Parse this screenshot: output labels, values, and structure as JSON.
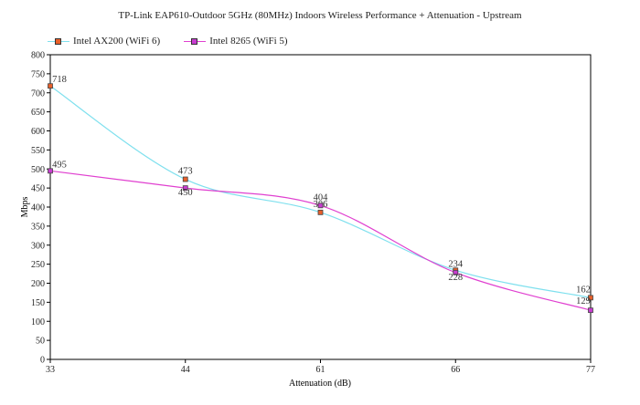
{
  "chart_data": {
    "type": "line",
    "title": "TP-Link EAP610-Outdoor 5GHz (80MHz) Indoors Wireless Performance + Attenuation - Upstream",
    "xlabel": "Attenuation (dB)",
    "ylabel": "Mbps",
    "categories": [
      "33",
      "44",
      "61",
      "66",
      "77"
    ],
    "ylim": [
      0,
      800
    ],
    "yticks": [
      0,
      50,
      100,
      150,
      200,
      250,
      300,
      350,
      400,
      450,
      500,
      550,
      600,
      650,
      700,
      750,
      800
    ],
    "legend_position": "top-left",
    "series": [
      {
        "name": "Intel AX200 (WiFi 6)",
        "values": [
          718,
          473,
          386,
          234,
          162
        ],
        "labels": [
          "718",
          "473",
          "386",
          "234",
          "162"
        ],
        "line_color": "#7fe0ee",
        "marker_color": "#e8602a"
      },
      {
        "name": "Intel 8265 (WiFi 5)",
        "values": [
          495,
          450,
          404,
          228,
          129
        ],
        "labels": [
          "495",
          "450",
          "404",
          "228",
          "129"
        ],
        "line_color": "#e040d0",
        "marker_color": "#c83cd0"
      }
    ]
  }
}
